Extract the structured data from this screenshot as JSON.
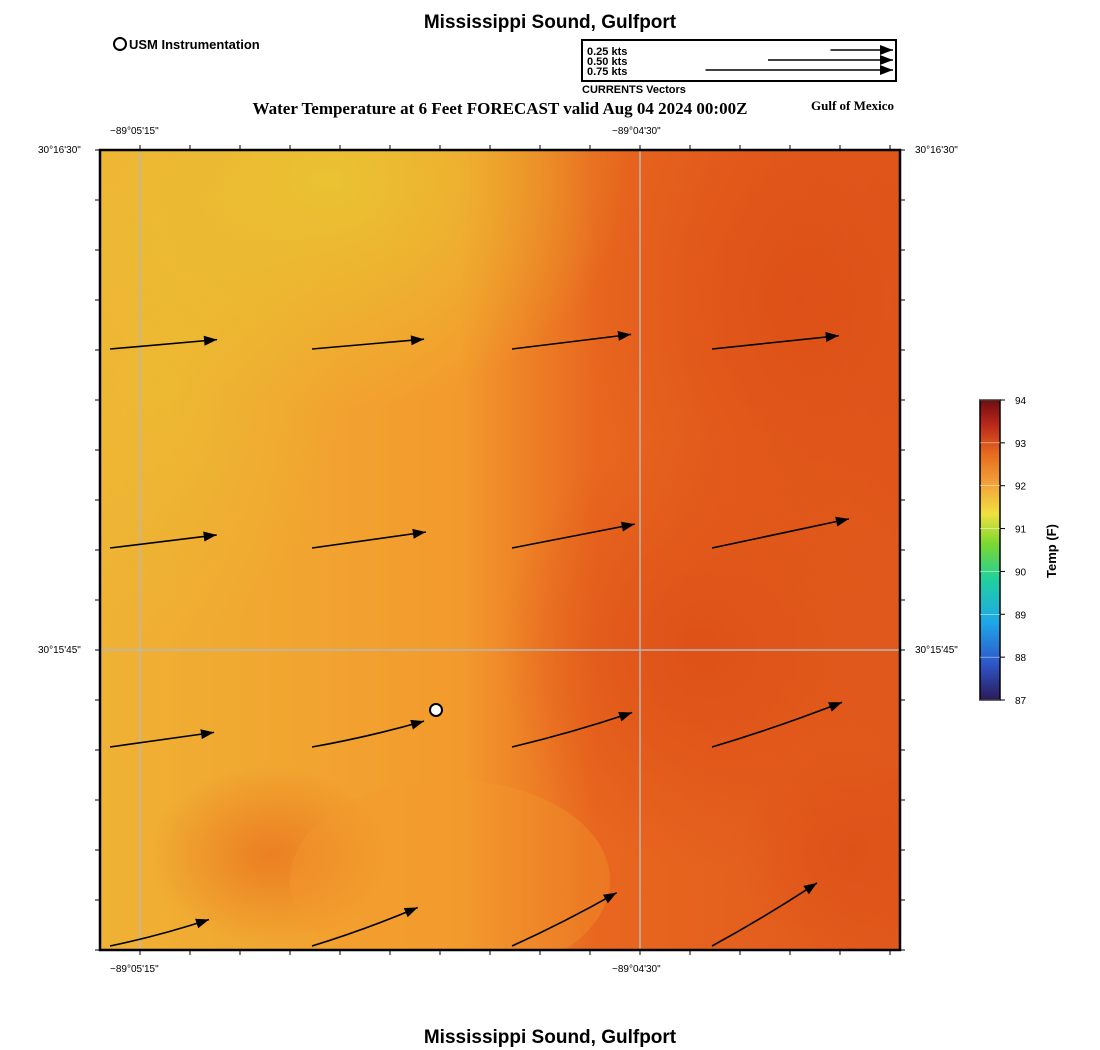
{
  "header": {
    "title": "Mississippi Sound, Gulfport",
    "instrument_legend": "USM Instrumentation",
    "subtitle": "Water Temperature at 6 Feet FORECAST valid Aug 04 2024 00:00Z",
    "region": "Gulf of Mexico"
  },
  "vector_legend": {
    "title": "CURRENTS Vectors",
    "items": [
      {
        "label": "0.25 kts",
        "speed_kts": 0.25
      },
      {
        "label": "0.50 kts",
        "speed_kts": 0.5
      },
      {
        "label": "0.75 kts",
        "speed_kts": 0.75
      }
    ]
  },
  "axes": {
    "top_lon_labels": [
      "−89°05'15\"",
      "−89°04'30\""
    ],
    "bottom_lon_labels": [
      "−89°05'15\"",
      "−89°04'30\""
    ],
    "left_lat_labels": [
      "30°16'30\"",
      "30°15'45\""
    ],
    "right_lat_labels": [
      "30°16'30\"",
      "30°15'45\""
    ]
  },
  "colorbar": {
    "label": "Temp (F)",
    "ticks": [
      "94",
      "93",
      "92",
      "91",
      "90",
      "89",
      "88",
      "87"
    ],
    "min": 87,
    "max": 94,
    "colors": [
      "#2b1a5a",
      "#2e56c8",
      "#1ea7e8",
      "#20d0a0",
      "#7ad830",
      "#f0e040",
      "#f3a23a",
      "#e66c1e",
      "#b8261a",
      "#6e0e10"
    ]
  },
  "footer": {
    "title": "Mississippi Sound, Gulfport"
  },
  "field": {
    "colors": {
      "cool": "#e9bd34",
      "mid": "#f39a2d",
      "warm": "#e0561a"
    }
  },
  "current_vectors": [
    {
      "row": 0,
      "col": 0,
      "speed_kts": 0.43,
      "angle_deg": 5
    },
    {
      "row": 0,
      "col": 1,
      "speed_kts": 0.45,
      "angle_deg": 5
    },
    {
      "row": 0,
      "col": 2,
      "speed_kts": 0.48,
      "angle_deg": 7
    },
    {
      "row": 0,
      "col": 3,
      "speed_kts": 0.51,
      "angle_deg": 6
    },
    {
      "row": 1,
      "col": 0,
      "speed_kts": 0.43,
      "angle_deg": 7
    },
    {
      "row": 1,
      "col": 1,
      "speed_kts": 0.46,
      "angle_deg": 8
    },
    {
      "row": 1,
      "col": 2,
      "speed_kts": 0.5,
      "angle_deg": 11
    },
    {
      "row": 1,
      "col": 3,
      "speed_kts": 0.56,
      "angle_deg": 12
    },
    {
      "row": 2,
      "col": 0,
      "speed_kts": 0.42,
      "angle_deg": 8
    },
    {
      "row": 2,
      "col": 1,
      "speed_kts": 0.46,
      "angle_deg": 13
    },
    {
      "row": 2,
      "col": 2,
      "speed_kts": 0.5,
      "angle_deg": 16
    },
    {
      "row": 2,
      "col": 3,
      "speed_kts": 0.55,
      "angle_deg": 19
    },
    {
      "row": 3,
      "col": 0,
      "speed_kts": 0.41,
      "angle_deg": 15
    },
    {
      "row": 3,
      "col": 1,
      "speed_kts": 0.45,
      "angle_deg": 20
    },
    {
      "row": 3,
      "col": 2,
      "speed_kts": 0.47,
      "angle_deg": 27
    },
    {
      "row": 3,
      "col": 3,
      "speed_kts": 0.49,
      "angle_deg": 31
    }
  ],
  "stations": [
    {
      "name": "USM Instrumentation",
      "col_frac": 0.42,
      "row_frac": 0.7
    }
  ]
}
